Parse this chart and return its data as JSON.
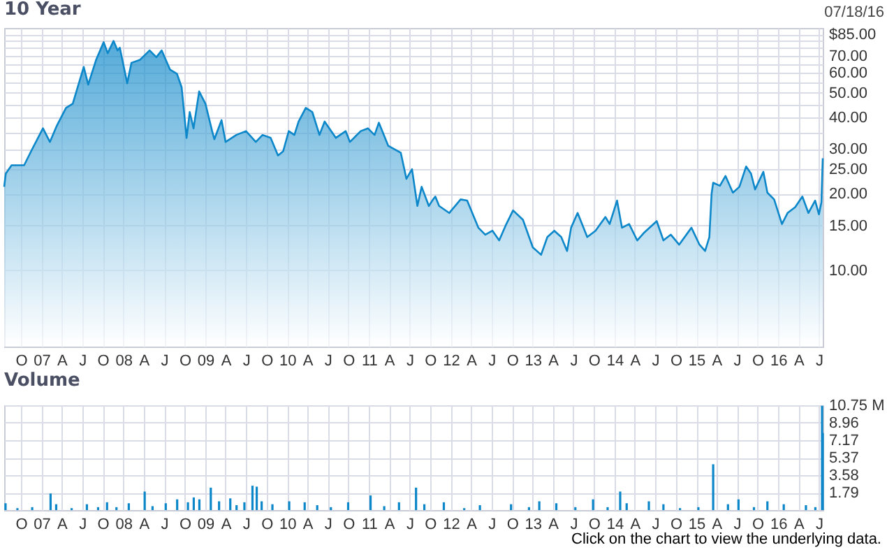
{
  "chart_data": [
    {
      "type": "area",
      "title": "10 Year",
      "annotations": [
        "07/18/16"
      ],
      "log": "y",
      "grid": true,
      "xlim": [
        "2006-07-18",
        "2016-07-18"
      ],
      "ylim": [
        5,
        90
      ],
      "yticks": [
        {
          "value": 10,
          "label": "10.00"
        },
        {
          "value": 15,
          "label": "15.00"
        },
        {
          "value": 20,
          "label": "20.00"
        },
        {
          "value": 25,
          "label": "25.00"
        },
        {
          "value": 30,
          "label": "30.00"
        },
        {
          "value": 35,
          "label": null
        },
        {
          "value": 40,
          "label": "40.00"
        },
        {
          "value": 45,
          "label": null
        },
        {
          "value": 50,
          "label": "50.00"
        },
        {
          "value": 55,
          "label": null
        },
        {
          "value": 60,
          "label": "60.00"
        },
        {
          "value": 65,
          "label": null
        },
        {
          "value": 70,
          "label": "70.00"
        },
        {
          "value": 75,
          "label": null
        },
        {
          "value": 80,
          "label": null
        },
        {
          "value": 85,
          "label": "$85.00"
        }
      ],
      "xticks": [
        {
          "value": "2006-10",
          "label": "O"
        },
        {
          "value": "2007-01",
          "label": "07"
        },
        {
          "value": "2007-04",
          "label": "A"
        },
        {
          "value": "2007-07",
          "label": "J"
        },
        {
          "value": "2007-10",
          "label": "O"
        },
        {
          "value": "2008-01",
          "label": "08"
        },
        {
          "value": "2008-04",
          "label": "A"
        },
        {
          "value": "2008-07",
          "label": "J"
        },
        {
          "value": "2008-10",
          "label": "O"
        },
        {
          "value": "2009-01",
          "label": "09"
        },
        {
          "value": "2009-04",
          "label": "A"
        },
        {
          "value": "2009-07",
          "label": "J"
        },
        {
          "value": "2009-10",
          "label": "O"
        },
        {
          "value": "2010-01",
          "label": "10"
        },
        {
          "value": "2010-04",
          "label": "A"
        },
        {
          "value": "2010-07",
          "label": "J"
        },
        {
          "value": "2010-10",
          "label": "O"
        },
        {
          "value": "2011-01",
          "label": "11"
        },
        {
          "value": "2011-04",
          "label": "A"
        },
        {
          "value": "2011-07",
          "label": "J"
        },
        {
          "value": "2011-10",
          "label": "O"
        },
        {
          "value": "2012-01",
          "label": "12"
        },
        {
          "value": "2012-04",
          "label": "A"
        },
        {
          "value": "2012-07",
          "label": "J"
        },
        {
          "value": "2012-10",
          "label": "O"
        },
        {
          "value": "2013-01",
          "label": "13"
        },
        {
          "value": "2013-04",
          "label": "A"
        },
        {
          "value": "2013-07",
          "label": "J"
        },
        {
          "value": "2013-10",
          "label": "O"
        },
        {
          "value": "2014-01",
          "label": "14"
        },
        {
          "value": "2014-04",
          "label": "A"
        },
        {
          "value": "2014-07",
          "label": "J"
        },
        {
          "value": "2014-10",
          "label": "O"
        },
        {
          "value": "2015-01",
          "label": "15"
        },
        {
          "value": "2015-04",
          "label": "A"
        },
        {
          "value": "2015-07",
          "label": "J"
        },
        {
          "value": "2015-10",
          "label": "O"
        },
        {
          "value": "2016-01",
          "label": "16"
        },
        {
          "value": "2016-04",
          "label": "A"
        },
        {
          "value": "2016-07",
          "label": "J"
        }
      ],
      "x": [
        "2006-07-18",
        "2006-07-25",
        "2006-08-20",
        "2006-10-15",
        "2006-11-15",
        "2007-01-07",
        "2007-02-07",
        "2007-03-10",
        "2007-04-20",
        "2007-05-20",
        "2007-07-08",
        "2007-07-28",
        "2007-09-01",
        "2007-10-05",
        "2007-10-23",
        "2007-11-18",
        "2007-12-06",
        "2007-12-16",
        "2008-01-18",
        "2008-02-06",
        "2008-03-14",
        "2008-04-27",
        "2008-05-27",
        "2008-06-20",
        "2008-07-27",
        "2008-08-27",
        "2008-09-17",
        "2008-10-09",
        "2008-10-23",
        "2008-11-09",
        "2008-12-04",
        "2009-01-01",
        "2009-01-31",
        "2009-02-10",
        "2009-03-14",
        "2009-04-01",
        "2009-05-19",
        "2009-07-01",
        "2009-08-14",
        "2009-09-13",
        "2009-10-19",
        "2009-11-21",
        "2009-12-14",
        "2010-01-08",
        "2010-02-02",
        "2010-02-21",
        "2010-03-25",
        "2010-04-23",
        "2010-05-25",
        "2010-06-17",
        "2010-08-06",
        "2010-09-19",
        "2010-10-08",
        "2010-11-25",
        "2010-12-27",
        "2011-01-26",
        "2011-02-14",
        "2011-03-28",
        "2011-05-23",
        "2011-06-17",
        "2011-07-12",
        "2011-08-05",
        "2011-08-24",
        "2011-09-25",
        "2011-10-14",
        "2011-10-24",
        "2011-11-10",
        "2011-12-25",
        "2012-02-14",
        "2012-03-14",
        "2012-05-03",
        "2012-06-03",
        "2012-07-05",
        "2012-08-04",
        "2012-09-05",
        "2012-10-05",
        "2012-11-18",
        "2013-01-01",
        "2013-02-07",
        "2013-03-07",
        "2013-04-07",
        "2013-05-08",
        "2013-06-03",
        "2013-06-21",
        "2013-07-20",
        "2013-09-01",
        "2013-10-08",
        "2013-11-21",
        "2013-12-10",
        "2014-01-12",
        "2014-02-03",
        "2014-03-07",
        "2014-04-12",
        "2014-05-11",
        "2014-07-08",
        "2014-08-07",
        "2014-09-09",
        "2014-10-16",
        "2014-12-10",
        "2015-01-15",
        "2015-02-09",
        "2015-02-28",
        "2015-03-10",
        "2015-03-17",
        "2015-04-16",
        "2015-05-11",
        "2015-06-13",
        "2015-07-12",
        "2015-08-11",
        "2015-09-02",
        "2015-09-20",
        "2015-10-27",
        "2015-11-14",
        "2015-12-14",
        "2016-01-18",
        "2016-02-12",
        "2016-03-17",
        "2016-04-18",
        "2016-05-15",
        "2016-06-14",
        "2016-07-01",
        "2016-07-12",
        "2016-07-18"
      ],
      "series": [
        {
          "color": "#0c87c9",
          "values": [
            21.3,
            24.0,
            25.9,
            25.9,
            29.4,
            36.2,
            32.0,
            37.1,
            43.6,
            45.3,
            63.2,
            53.8,
            67.3,
            79.1,
            71.6,
            80.0,
            73.4,
            75.2,
            54.5,
            65.6,
            67.3,
            73.4,
            69.0,
            73.4,
            61.7,
            59.4,
            52.5,
            33.2,
            42.0,
            36.2,
            50.6,
            45.3,
            35.3,
            32.8,
            39.0,
            32.0,
            34.1,
            35.3,
            32.0,
            34.1,
            33.2,
            28.3,
            29.4,
            35.3,
            34.1,
            38.5,
            43.6,
            42.0,
            34.1,
            38.5,
            33.2,
            35.3,
            32.0,
            35.3,
            36.2,
            34.1,
            38.1,
            30.9,
            29.0,
            22.9,
            25.0,
            17.9,
            21.3,
            17.9,
            19.0,
            19.5,
            17.9,
            16.8,
            19.0,
            18.8,
            14.7,
            13.8,
            14.3,
            13.1,
            15.2,
            17.2,
            15.8,
            12.3,
            11.5,
            13.5,
            14.3,
            13.5,
            11.9,
            14.7,
            16.8,
            13.5,
            14.3,
            16.2,
            15.2,
            18.8,
            14.7,
            15.2,
            13.1,
            14.0,
            15.6,
            13.1,
            13.8,
            12.6,
            14.7,
            12.6,
            11.9,
            13.5,
            20.0,
            22.1,
            21.5,
            23.5,
            20.2,
            21.3,
            25.6,
            24.0,
            20.8,
            24.4,
            20.2,
            19.0,
            15.2,
            16.8,
            17.7,
            19.5,
            16.8,
            18.8,
            16.6,
            18.5,
            27.6
          ]
        }
      ]
    },
    {
      "type": "bar",
      "title": "Volume",
      "annotations": [
        "Click on the chart to view the underlying data."
      ],
      "grid": true,
      "xlim": [
        "2006-07-18",
        "2016-07-18"
      ],
      "ylim": [
        0,
        10.75
      ],
      "yticks": [
        1.79,
        3.58,
        5.37,
        7.17,
        8.96,
        {
          "value": 10.75,
          "label": "10.75 M"
        }
      ],
      "xticks": [
        {
          "value": "2006-10",
          "label": "O"
        },
        {
          "value": "2007-01",
          "label": "07"
        },
        {
          "value": "2007-04",
          "label": "A"
        },
        {
          "value": "2007-07",
          "label": "J"
        },
        {
          "value": "2007-10",
          "label": "O"
        },
        {
          "value": "2008-01",
          "label": "08"
        },
        {
          "value": "2008-04",
          "label": "A"
        },
        {
          "value": "2008-07",
          "label": "J"
        },
        {
          "value": "2008-10",
          "label": "O"
        },
        {
          "value": "2009-01",
          "label": "09"
        },
        {
          "value": "2009-04",
          "label": "A"
        },
        {
          "value": "2009-07",
          "label": "J"
        },
        {
          "value": "2009-10",
          "label": "O"
        },
        {
          "value": "2010-01",
          "label": "10"
        },
        {
          "value": "2010-04",
          "label": "A"
        },
        {
          "value": "2010-07",
          "label": "J"
        },
        {
          "value": "2010-10",
          "label": "O"
        },
        {
          "value": "2011-01",
          "label": "11"
        },
        {
          "value": "2011-04",
          "label": "A"
        },
        {
          "value": "2011-07",
          "label": "J"
        },
        {
          "value": "2011-10",
          "label": "O"
        },
        {
          "value": "2012-01",
          "label": "12"
        },
        {
          "value": "2012-04",
          "label": "A"
        },
        {
          "value": "2012-07",
          "label": "J"
        },
        {
          "value": "2012-10",
          "label": "O"
        },
        {
          "value": "2013-01",
          "label": "13"
        },
        {
          "value": "2013-04",
          "label": "A"
        },
        {
          "value": "2013-07",
          "label": "J"
        },
        {
          "value": "2013-10",
          "label": "O"
        },
        {
          "value": "2014-01",
          "label": "14"
        },
        {
          "value": "2014-04",
          "label": "A"
        },
        {
          "value": "2014-07",
          "label": "J"
        },
        {
          "value": "2014-10",
          "label": "O"
        },
        {
          "value": "2015-01",
          "label": "15"
        },
        {
          "value": "2015-04",
          "label": "A"
        },
        {
          "value": "2015-07",
          "label": "J"
        },
        {
          "value": "2015-10",
          "label": "O"
        },
        {
          "value": "2016-01",
          "label": "16"
        },
        {
          "value": "2016-04",
          "label": "A"
        },
        {
          "value": "2016-07",
          "label": "J"
        }
      ],
      "x": [
        "2006-07-24",
        "2006-09-15",
        "2006-11-20",
        "2007-02-10",
        "2007-03-07",
        "2007-05-15",
        "2007-07-22",
        "2007-09-10",
        "2007-10-20",
        "2007-12-01",
        "2008-01-25",
        "2008-04-05",
        "2008-05-10",
        "2008-07-08",
        "2008-08-28",
        "2008-10-15",
        "2008-11-10",
        "2008-12-05",
        "2009-01-25",
        "2009-03-03",
        "2009-04-22",
        "2009-05-20",
        "2009-06-24",
        "2009-07-30",
        "2009-08-18",
        "2009-09-09",
        "2009-10-27",
        "2010-01-10",
        "2010-03-20",
        "2010-05-15",
        "2010-07-15",
        "2010-09-30",
        "2011-01-08",
        "2011-03-10",
        "2011-05-15",
        "2011-07-30",
        "2011-09-05",
        "2011-12-01",
        "2012-03-01",
        "2012-05-10",
        "2012-09-26",
        "2012-12-15",
        "2013-01-30",
        "2013-04-16",
        "2013-07-10",
        "2013-09-27",
        "2013-12-01",
        "2014-01-26",
        "2014-02-24",
        "2014-06-03",
        "2014-08-07",
        "2014-10-20",
        "2015-01-10",
        "2015-03-17",
        "2015-05-22",
        "2015-07-08",
        "2015-09-15",
        "2015-11-14",
        "2016-01-26",
        "2016-05-04",
        "2016-06-15",
        "2016-07-15",
        "2016-07-18"
      ],
      "series": [
        {
          "color": "#0c87c9",
          "values": [
            0.7,
            0.2,
            0.3,
            1.7,
            0.6,
            0.2,
            0.6,
            0.3,
            0.8,
            0.3,
            0.7,
            1.9,
            0.4,
            0.7,
            1.1,
            0.8,
            1.3,
            1.1,
            2.3,
            0.9,
            1.2,
            0.5,
            0.8,
            2.5,
            2.4,
            0.9,
            0.6,
            0.9,
            0.8,
            0.5,
            0.3,
            0.8,
            1.5,
            0.4,
            0.8,
            2.3,
            0.6,
            0.8,
            0.2,
            0.5,
            0.6,
            0.3,
            0.9,
            0.7,
            0.3,
            1.1,
            0.3,
            1.9,
            0.7,
            0.9,
            0.6,
            0.2,
            0.3,
            4.7,
            0.6,
            1.1,
            0.3,
            0.9,
            0.6,
            0.5,
            0.3,
            10.7,
            7.9
          ]
        }
      ]
    }
  ]
}
